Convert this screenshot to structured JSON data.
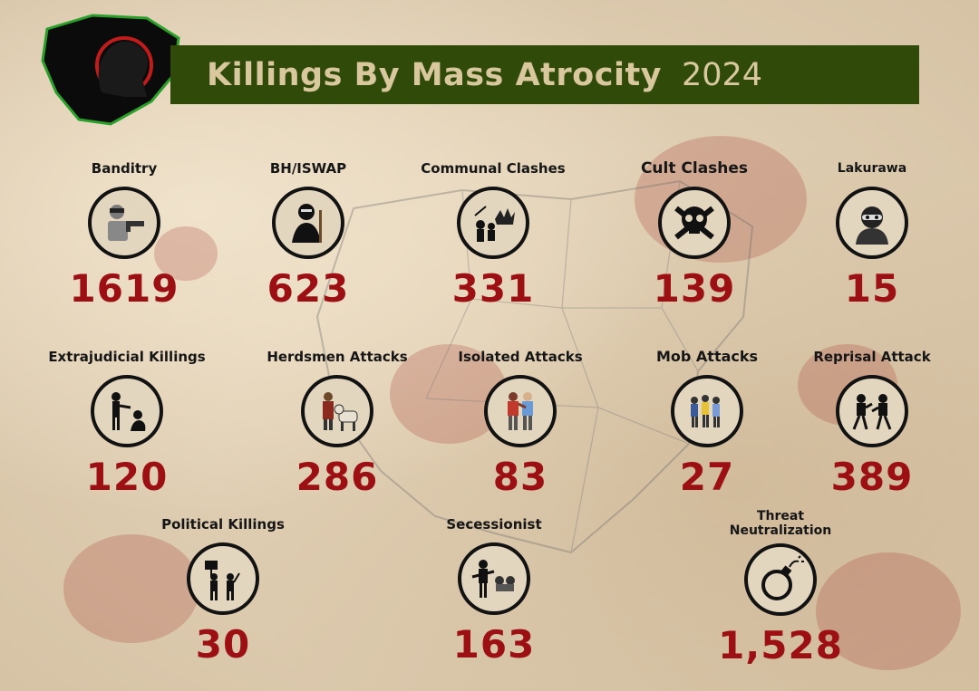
{
  "header": {
    "title": "Killings By Mass Atrocity",
    "year": "2024"
  },
  "colors": {
    "banner_bg": "#2f4a09",
    "title_text": "#d9c89e",
    "value_red": "#9c0f12",
    "paper": "#dccbb0"
  },
  "categories": [
    {
      "label": "Banditry",
      "value": "1619",
      "icon": "bandit-gun-icon"
    },
    {
      "label": "BH/ISWAP",
      "value": "623",
      "icon": "armed-militant-icon"
    },
    {
      "label": "Communal Clashes",
      "value": "331",
      "icon": "communal-clash-icon"
    },
    {
      "label": "Cult Clashes",
      "value": "139",
      "icon": "skull-crossbones-icon"
    },
    {
      "label": "Lakurawa",
      "value": "15",
      "icon": "masked-robber-icon"
    },
    {
      "label": "Extrajudicial Killings",
      "value": "120",
      "icon": "extrajudicial-killing-icon"
    },
    {
      "label": "Herdsmen Attacks",
      "value": "286",
      "icon": "herdsman-cattle-icon"
    },
    {
      "label": "Isolated Attacks",
      "value": "83",
      "icon": "isolated-attack-icon"
    },
    {
      "label": "Mob Attacks",
      "value": "27",
      "icon": "mob-attack-icon"
    },
    {
      "label": "Reprisal Attack",
      "value": "389",
      "icon": "reprisal-fight-icon"
    },
    {
      "label": "Political Killings",
      "value": "30",
      "icon": "political-protest-icon"
    },
    {
      "label": "Secessionist",
      "value": "163",
      "icon": "secessionist-soldier-icon"
    },
    {
      "label": "Threat\nNeutralization",
      "value": "1,528",
      "icon": "bomb-icon"
    }
  ]
}
